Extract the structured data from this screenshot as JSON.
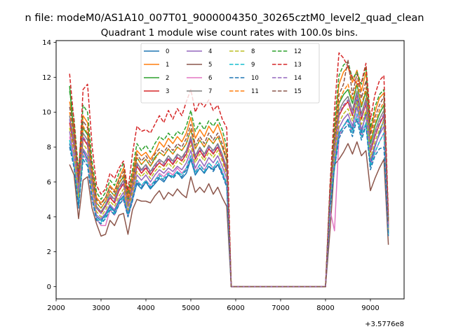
{
  "chart_data": {
    "type": "line",
    "suptitle": "n file: modeM0/AS1A10_007T01_9000004350_30265cztM0_level2_quad_clean",
    "title": "Quadrant 1 module wise count rates with 100.0s bins.",
    "xlabel": "",
    "ylabel": "",
    "x_offset_label": "+3.5776e8",
    "xlim": [
      2000,
      9750
    ],
    "ylim": [
      -0.7,
      14.1
    ],
    "xticks": [
      2000,
      3000,
      4000,
      5000,
      6000,
      7000,
      8000,
      9000
    ],
    "yticks": [
      0,
      2,
      4,
      6,
      8,
      10,
      12,
      14
    ],
    "grid": false,
    "legend": {
      "placement": "top-center",
      "columns": 4
    },
    "x": [
      2300,
      2400,
      2500,
      2600,
      2700,
      2800,
      2900,
      3000,
      3100,
      3200,
      3300,
      3400,
      3500,
      3600,
      3700,
      3800,
      3900,
      4000,
      4100,
      4200,
      4300,
      4400,
      4500,
      4600,
      4700,
      4800,
      4900,
      5000,
      5100,
      5200,
      5300,
      5400,
      5500,
      5600,
      5700,
      5800,
      5900,
      6000,
      8000,
      8100,
      8200,
      8300,
      8400,
      8500,
      8600,
      8700,
      8800,
      8900,
      9000,
      9100,
      9200,
      9300,
      9400
    ],
    "series": [
      {
        "name": "0",
        "color": "#1f77b4",
        "dash": "solid",
        "values": [
          8.2,
          7.1,
          4.8,
          7.8,
          7.3,
          5.2,
          4.0,
          3.8,
          4.1,
          4.6,
          4.3,
          4.9,
          5.2,
          4.2,
          5.0,
          5.9,
          5.6,
          6.0,
          5.6,
          5.9,
          6.2,
          6.0,
          6.4,
          6.3,
          6.6,
          6.2,
          6.5,
          7.3,
          6.4,
          6.8,
          6.5,
          6.9,
          6.7,
          7.0,
          6.5,
          5.8,
          0,
          0,
          0,
          4.9,
          6.8,
          8.8,
          9.2,
          9.6,
          9.0,
          10.7,
          8.8,
          10.0,
          7.0,
          8.0,
          8.8,
          9.6,
          3.0
        ]
      },
      {
        "name": "1",
        "color": "#ff7f0e",
        "dash": "solid",
        "values": [
          10.6,
          9.2,
          6.2,
          9.8,
          9.4,
          6.8,
          5.1,
          4.8,
          5.1,
          5.8,
          5.5,
          6.2,
          6.8,
          5.2,
          6.4,
          7.8,
          7.5,
          7.7,
          7.3,
          7.7,
          8.3,
          8.0,
          8.5,
          8.2,
          8.6,
          8.3,
          8.8,
          9.7,
          8.5,
          9.0,
          8.6,
          9.2,
          8.8,
          9.3,
          8.6,
          7.6,
          0,
          0,
          0,
          5.6,
          8.9,
          11.6,
          12.3,
          12.6,
          11.7,
          12.4,
          11.2,
          12.3,
          8.9,
          10.0,
          10.8,
          11.1,
          3.7
        ]
      },
      {
        "name": "2",
        "color": "#2ca02c",
        "dash": "solid",
        "values": [
          11.5,
          8.5,
          5.7,
          9.1,
          8.7,
          6.3,
          4.8,
          4.5,
          4.9,
          5.5,
          5.2,
          5.9,
          6.3,
          4.9,
          6.0,
          7.4,
          7.0,
          7.3,
          6.9,
          7.4,
          7.7,
          7.5,
          7.9,
          7.6,
          8.0,
          7.8,
          8.2,
          9.0,
          7.9,
          8.4,
          8.0,
          8.5,
          8.2,
          8.6,
          8.0,
          7.2,
          0,
          0,
          0,
          5.2,
          8.3,
          10.5,
          11.0,
          11.3,
          10.5,
          11.6,
          10.3,
          11.2,
          8.2,
          9.2,
          9.9,
          10.4,
          3.5
        ]
      },
      {
        "name": "3",
        "color": "#d62728",
        "dash": "solid",
        "values": [
          9.4,
          8.0,
          5.3,
          8.5,
          8.1,
          5.9,
          4.5,
          4.2,
          4.6,
          5.1,
          4.8,
          5.5,
          5.9,
          4.6,
          5.6,
          6.9,
          6.5,
          6.8,
          6.4,
          6.8,
          7.1,
          6.9,
          7.3,
          7.0,
          7.4,
          7.2,
          7.6,
          8.4,
          7.3,
          7.8,
          7.4,
          7.9,
          7.6,
          8.0,
          7.4,
          6.6,
          0,
          0,
          0,
          5.0,
          7.8,
          9.8,
          10.3,
          10.6,
          9.8,
          11.0,
          9.6,
          10.5,
          7.7,
          8.6,
          9.3,
          9.8,
          3.3
        ]
      },
      {
        "name": "4",
        "color": "#9467bd",
        "dash": "solid",
        "values": [
          8.9,
          7.4,
          4.9,
          7.9,
          7.5,
          5.4,
          4.1,
          3.9,
          4.2,
          4.7,
          4.4,
          5.0,
          5.4,
          4.3,
          5.2,
          6.4,
          6.1,
          6.4,
          6.0,
          6.4,
          6.7,
          6.5,
          6.8,
          6.6,
          6.9,
          6.7,
          7.1,
          7.8,
          6.8,
          7.3,
          6.9,
          7.4,
          7.1,
          7.5,
          6.9,
          6.2,
          0,
          0,
          0,
          4.7,
          7.3,
          9.1,
          9.6,
          9.9,
          9.2,
          10.3,
          9.0,
          9.8,
          7.2,
          8.1,
          8.7,
          9.2,
          3.1
        ]
      },
      {
        "name": "5",
        "color": "#8c564b",
        "dash": "solid",
        "values": [
          7.0,
          6.4,
          3.9,
          6.1,
          6.3,
          4.5,
          3.6,
          2.9,
          3.0,
          3.8,
          3.5,
          4.1,
          4.2,
          3.0,
          4.4,
          5.0,
          4.9,
          4.9,
          4.8,
          5.2,
          5.5,
          5.0,
          5.4,
          5.2,
          5.6,
          5.3,
          5.1,
          6.3,
          5.4,
          5.7,
          5.4,
          5.9,
          5.3,
          5.7,
          5.1,
          4.6,
          0,
          0,
          0,
          3.2,
          7.0,
          7.3,
          7.7,
          8.2,
          7.6,
          8.3,
          7.5,
          7.8,
          5.5,
          6.2,
          6.8,
          7.3,
          2.4
        ]
      },
      {
        "name": "6",
        "color": "#e377c2",
        "dash": "solid",
        "values": [
          8.6,
          7.2,
          5.6,
          7.6,
          7.2,
          5.2,
          3.9,
          3.5,
          3.5,
          4.4,
          4.1,
          4.7,
          5.0,
          4.0,
          4.9,
          6.1,
          5.8,
          6.1,
          5.8,
          6.1,
          6.5,
          6.3,
          6.6,
          6.4,
          6.8,
          6.5,
          6.8,
          7.5,
          6.6,
          7.0,
          6.7,
          7.1,
          6.8,
          7.2,
          6.6,
          5.9,
          0,
          0,
          0,
          4.4,
          3.2,
          8.6,
          9.2,
          9.5,
          8.8,
          9.9,
          8.6,
          9.4,
          6.9,
          7.7,
          8.3,
          8.8,
          3.1
        ]
      },
      {
        "name": "7",
        "color": "#7f7f7f",
        "dash": "solid",
        "values": [
          9.8,
          8.3,
          5.6,
          8.8,
          8.4,
          6.1,
          4.6,
          4.3,
          4.7,
          5.3,
          5.0,
          5.7,
          6.1,
          4.7,
          5.8,
          7.1,
          6.7,
          7.0,
          6.6,
          7.0,
          7.3,
          7.1,
          7.5,
          7.2,
          7.6,
          7.4,
          7.8,
          8.6,
          7.5,
          8.0,
          7.6,
          8.1,
          7.8,
          8.2,
          7.6,
          6.8,
          0,
          0,
          0,
          5.1,
          8.0,
          10.1,
          10.6,
          10.9,
          10.1,
          11.2,
          9.9,
          10.8,
          7.9,
          8.9,
          9.6,
          10.1,
          3.4
        ]
      },
      {
        "name": "8",
        "color": "#bcbd22",
        "dash": "dashed",
        "values": [
          9.1,
          7.7,
          5.1,
          8.2,
          7.8,
          5.6,
          4.3,
          4.0,
          4.4,
          4.9,
          4.6,
          5.2,
          5.6,
          4.4,
          5.4,
          6.6,
          6.3,
          6.6,
          6.2,
          6.6,
          6.9,
          6.7,
          7.1,
          6.8,
          7.2,
          7.0,
          7.4,
          8.1,
          7.1,
          7.6,
          7.2,
          7.7,
          7.4,
          7.8,
          7.2,
          6.4,
          0,
          0,
          0,
          4.8,
          7.5,
          9.4,
          9.9,
          10.2,
          9.5,
          10.6,
          9.3,
          10.1,
          7.4,
          8.3,
          9.0,
          9.5,
          3.2
        ]
      },
      {
        "name": "9",
        "color": "#17becf",
        "dash": "dashed",
        "values": [
          8.4,
          7.0,
          4.6,
          7.5,
          7.1,
          5.1,
          3.9,
          3.7,
          4.0,
          4.5,
          4.2,
          4.8,
          5.1,
          4.1,
          5.0,
          6.1,
          5.8,
          6.1,
          5.7,
          6.1,
          6.4,
          6.2,
          6.5,
          6.3,
          6.6,
          6.4,
          6.8,
          7.5,
          6.5,
          7.0,
          6.6,
          7.1,
          6.8,
          7.2,
          6.6,
          5.9,
          0,
          0,
          0,
          4.5,
          7.0,
          8.7,
          9.2,
          9.5,
          8.8,
          9.9,
          8.6,
          9.4,
          6.9,
          7.7,
          8.3,
          8.8,
          3.0
        ]
      },
      {
        "name": "10",
        "color": "#1f77b4",
        "dash": "dashed",
        "values": [
          8.0,
          6.8,
          4.5,
          7.3,
          6.9,
          5.0,
          3.8,
          3.6,
          3.9,
          4.4,
          4.1,
          4.7,
          5.0,
          4.0,
          4.9,
          6.0,
          5.7,
          6.0,
          5.6,
          6.0,
          6.3,
          6.1,
          6.4,
          6.2,
          6.5,
          6.3,
          6.7,
          7.3,
          6.4,
          6.8,
          6.5,
          6.9,
          6.6,
          7.0,
          6.4,
          5.7,
          0,
          0,
          0,
          4.4,
          6.8,
          8.5,
          9.0,
          9.3,
          8.6,
          9.6,
          8.4,
          9.2,
          6.7,
          7.5,
          7.9,
          8.0,
          2.9
        ]
      },
      {
        "name": "11",
        "color": "#ff7f0e",
        "dash": "dashed",
        "values": [
          10.0,
          8.6,
          5.8,
          9.2,
          8.8,
          6.4,
          4.8,
          4.5,
          4.9,
          5.5,
          5.2,
          5.9,
          6.4,
          4.9,
          6.0,
          7.4,
          7.0,
          7.3,
          6.9,
          7.3,
          7.7,
          7.5,
          7.9,
          7.6,
          8.0,
          7.8,
          8.2,
          9.0,
          7.9,
          8.4,
          8.0,
          8.5,
          8.2,
          8.6,
          8.0,
          7.2,
          0,
          0,
          0,
          5.3,
          8.3,
          10.6,
          11.2,
          11.6,
          10.7,
          11.8,
          10.4,
          11.4,
          8.4,
          9.4,
          10.1,
          10.6,
          3.6
        ]
      },
      {
        "name": "12",
        "color": "#2ca02c",
        "dash": "dashed",
        "values": [
          11.2,
          9.6,
          6.6,
          10.4,
          10.0,
          7.2,
          5.4,
          5.0,
          5.4,
          6.1,
          5.8,
          6.5,
          7.1,
          5.4,
          6.7,
          8.2,
          7.8,
          8.1,
          7.7,
          8.2,
          8.6,
          8.4,
          8.8,
          8.5,
          8.9,
          8.7,
          9.2,
          10.1,
          8.9,
          9.4,
          9.0,
          9.5,
          9.2,
          9.6,
          9.0,
          8.0,
          0,
          0,
          0,
          5.8,
          9.3,
          12.1,
          12.7,
          12.9,
          11.9,
          12.3,
          11.6,
          12.6,
          9.1,
          10.3,
          11.0,
          11.3,
          3.9
        ]
      },
      {
        "name": "13",
        "color": "#d62728",
        "dash": "dashed",
        "values": [
          12.2,
          9.4,
          6.2,
          11.3,
          11.6,
          8.1,
          5.8,
          5.3,
          5.6,
          6.5,
          6.2,
          6.8,
          7.2,
          5.5,
          7.6,
          9.2,
          8.9,
          9.0,
          8.8,
          9.3,
          9.8,
          9.4,
          10.1,
          9.6,
          10.2,
          9.8,
          10.6,
          11.3,
          10.0,
          10.6,
          10.3,
          10.7,
          10.1,
          10.4,
          9.6,
          9.1,
          0,
          0,
          0,
          5.8,
          10.2,
          13.4,
          13.1,
          12.6,
          12.0,
          11.6,
          11.7,
          12.8,
          9.6,
          11.0,
          11.8,
          12.1,
          4.1
        ]
      },
      {
        "name": "14",
        "color": "#9467bd",
        "dash": "dashed",
        "values": [
          9.6,
          8.1,
          5.5,
          8.6,
          8.2,
          5.9,
          4.5,
          4.2,
          4.6,
          5.2,
          4.9,
          5.6,
          6.0,
          4.6,
          5.7,
          7.0,
          6.6,
          6.9,
          6.5,
          6.9,
          7.2,
          7.0,
          7.4,
          7.1,
          7.5,
          7.3,
          7.7,
          8.5,
          7.4,
          7.9,
          7.5,
          8.0,
          7.7,
          8.1,
          7.5,
          6.7,
          0,
          0,
          0,
          5.0,
          7.9,
          9.9,
          10.4,
          10.7,
          9.9,
          11.0,
          9.7,
          10.6,
          7.8,
          8.7,
          9.4,
          9.9,
          3.4
        ]
      },
      {
        "name": "15",
        "color": "#8c564b",
        "dash": "dashed",
        "values": [
          10.3,
          8.8,
          6.0,
          9.5,
          9.1,
          6.6,
          5.0,
          4.7,
          5.1,
          5.7,
          5.4,
          6.1,
          6.6,
          5.1,
          6.2,
          7.6,
          7.2,
          7.5,
          7.1,
          7.6,
          7.9,
          7.7,
          8.1,
          7.8,
          8.2,
          8.0,
          8.5,
          9.3,
          8.1,
          8.6,
          8.2,
          8.8,
          8.4,
          8.8,
          8.2,
          7.3,
          0,
          0,
          0,
          5.4,
          8.6,
          11.0,
          11.6,
          13.0,
          11.0,
          12.2,
          10.8,
          11.8,
          8.7,
          9.7,
          10.4,
          10.9,
          3.7
        ]
      }
    ]
  }
}
